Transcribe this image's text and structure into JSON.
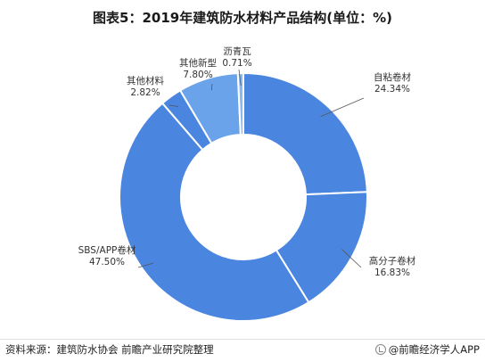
{
  "title": "图表5：2019年建筑防水材料产品结构(单位：%)",
  "chart_data": {
    "type": "pie",
    "donut": true,
    "slices": [
      {
        "label": "自粘卷材",
        "value": 24.34,
        "display": "24.34%",
        "color": "#4a86e0"
      },
      {
        "label": "高分子卷材",
        "value": 16.83,
        "display": "16.83%",
        "color": "#4a86e0"
      },
      {
        "label": "SBS/APP卷材",
        "value": 47.5,
        "display": "47.50%",
        "color": "#4a86e0"
      },
      {
        "label": "其他材料",
        "value": 2.82,
        "display": "2.82%",
        "color": "#4a86e0"
      },
      {
        "label": "其他新型",
        "value": 7.8,
        "display": "7.80%",
        "color": "#6ba3ea"
      },
      {
        "label": "沥青瓦",
        "value": 0.71,
        "display": "0.71%",
        "color": "#8bb8ef"
      }
    ]
  },
  "footer": {
    "source": "资料来源：建筑防水协会 前瞻产业研究院整理",
    "brand": "@前瞻经济学人APP"
  }
}
